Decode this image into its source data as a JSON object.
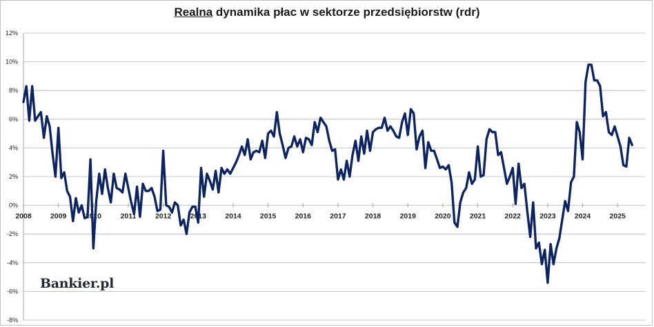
{
  "chart_data": {
    "type": "line",
    "title_underlined": "Realna",
    "title_rest": " dynamika płac w sektorze przedsiębiorstw (rdr)",
    "xlabel": "",
    "ylabel": "",
    "ylim": [
      -8,
      12
    ],
    "xlim": [
      2008,
      2025.45
    ],
    "y_ticks": [
      12,
      10,
      8,
      6,
      4,
      2,
      0,
      -2,
      -4,
      -6,
      -8
    ],
    "y_tick_labels": [
      "12%",
      "10%",
      "8%",
      "6%",
      "4%",
      "2%",
      "0%",
      "-2%",
      "-4%",
      "-6%",
      "-8%"
    ],
    "x_ticks": [
      2008,
      2009,
      2010,
      2011,
      2012,
      2013,
      2014,
      2015,
      2016,
      2017,
      2018,
      2019,
      2020,
      2021,
      2022,
      2023,
      2024,
      2025
    ],
    "x_tick_labels": [
      "2008",
      "2009",
      "2010",
      "2011",
      "2012",
      "2013",
      "2014",
      "2015",
      "2016",
      "2017",
      "2018",
      "2019",
      "2020",
      "2021",
      "2022",
      "2023",
      "2024",
      "2025"
    ],
    "grid": "horizontal",
    "line_color": "#0d2463",
    "grid_color": "#b0b0b0",
    "series": [
      {
        "start_year": 2008,
        "start_month": 1,
        "frequency": "monthly",
        "values": [
          7.2,
          8.3,
          5.9,
          8.3,
          5.9,
          6.2,
          6.5,
          4.7,
          6.2,
          5.5,
          3.6,
          2.0,
          5.4,
          1.9,
          2.3,
          1.0,
          0.6,
          -1.1,
          0.5,
          -0.5,
          0.0,
          -0.9,
          -0.8,
          3.2,
          -3.0,
          0.3,
          2.2,
          0.8,
          2.5,
          1.2,
          0.2,
          2.2,
          1.2,
          1.1,
          0.9,
          2.2,
          1.2,
          0.2,
          -0.6,
          1.3,
          -0.8,
          1.5,
          1.0,
          1.0,
          1.2,
          0.6,
          -0.4,
          -0.3,
          3.8,
          0.0,
          -0.1,
          -0.5,
          0.2,
          0.0,
          -1.4,
          -1.0,
          -2.0,
          -0.5,
          -0.1,
          -0.1,
          -1.2,
          2.6,
          0.6,
          2.2,
          1.7,
          1.1,
          2.4,
          0.9,
          2.6,
          2.2,
          2.5,
          2.2,
          2.6,
          3.0,
          3.5,
          4.1,
          3.5,
          4.6,
          3.2,
          3.7,
          3.8,
          3.7,
          4.5,
          3.3,
          5.0,
          5.2,
          4.8,
          6.5,
          5.0,
          4.2,
          3.3,
          4.0,
          4.1,
          4.8,
          4.1,
          4.6,
          3.7,
          4.7,
          4.6,
          4.2,
          5.8,
          5.1,
          6.1,
          5.8,
          5.5,
          4.5,
          3.8,
          3.9,
          1.8,
          2.5,
          1.8,
          3.1,
          2.0,
          3.5,
          4.5,
          3.1,
          4.8,
          3.6,
          5.2,
          3.8,
          5.1,
          5.3,
          5.4,
          5.4,
          6.1,
          5.2,
          5.5,
          5.2,
          4.8,
          4.7,
          5.8,
          6.4,
          4.9,
          6.7,
          6.4,
          3.9,
          4.8,
          5.2,
          2.6,
          4.4,
          3.8,
          3.8,
          3.2,
          2.6,
          2.7,
          2.5,
          2.8,
          1.6,
          -1.2,
          -1.5,
          0.2,
          0.9,
          1.2,
          2.3,
          1.5,
          1.8,
          4.1,
          2.0,
          2.1,
          4.6,
          5.3,
          5.1,
          5.1,
          3.5,
          3.7,
          2.6,
          1.5,
          2.0,
          2.6,
          0.1,
          2.9,
          1.2,
          1.5,
          -0.4,
          -2.2,
          0.2,
          -3.0,
          -2.6,
          -4.1,
          -3.1,
          -5.4,
          -2.7,
          -4.1,
          -3.0,
          -2.3,
          -1.0,
          0.3,
          -0.4,
          1.6,
          2.0,
          5.8,
          5.1,
          3.2,
          8.6,
          9.8,
          9.8,
          8.7,
          8.7,
          8.3,
          6.2,
          6.5,
          5.1,
          4.9,
          5.5,
          4.8,
          4.1,
          2.8,
          2.7,
          4.7,
          4.2
        ]
      }
    ]
  },
  "logo_text": "Bankier.pl"
}
